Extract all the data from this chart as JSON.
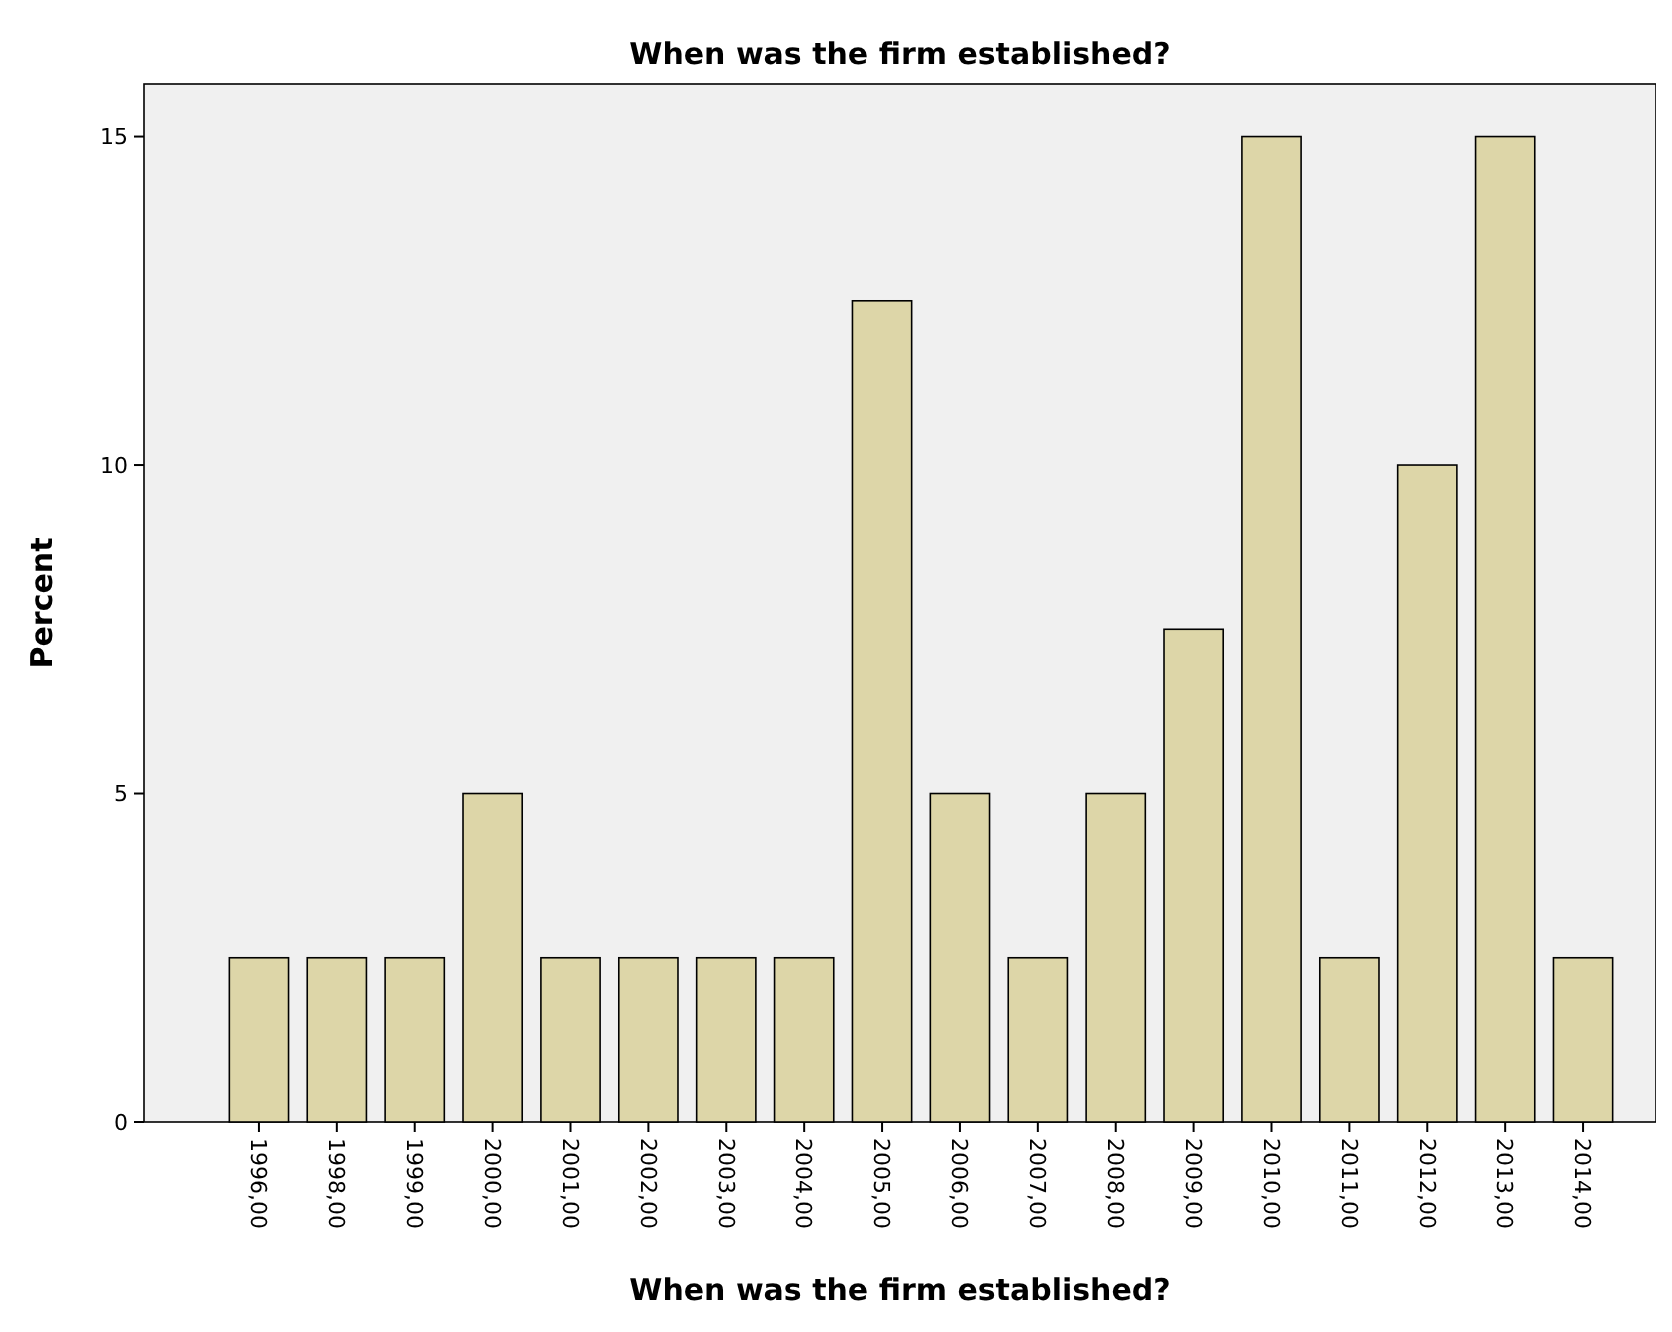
{
  "chart_data": {
    "type": "bar",
    "title": "When was the firm established?",
    "xlabel": "When was the firm established?",
    "ylabel": "Percent",
    "categories": [
      "1996,00",
      "1998,00",
      "1999,00",
      "2000,00",
      "2001,00",
      "2002,00",
      "2003,00",
      "2004,00",
      "2005,00",
      "2006,00",
      "2007,00",
      "2008,00",
      "2009,00",
      "2010,00",
      "2011,00",
      "2012,00",
      "2013,00",
      "2014,00"
    ],
    "values": [
      2.5,
      2.5,
      2.5,
      5,
      2.5,
      2.5,
      2.5,
      2.5,
      12.5,
      5,
      2.5,
      5,
      7.5,
      15,
      2.5,
      10,
      15,
      2.5
    ],
    "color": "#ddd6a8",
    "ylim": [
      0,
      15.8
    ],
    "yticks": [
      0,
      5,
      10,
      15
    ],
    "grid": false
  }
}
